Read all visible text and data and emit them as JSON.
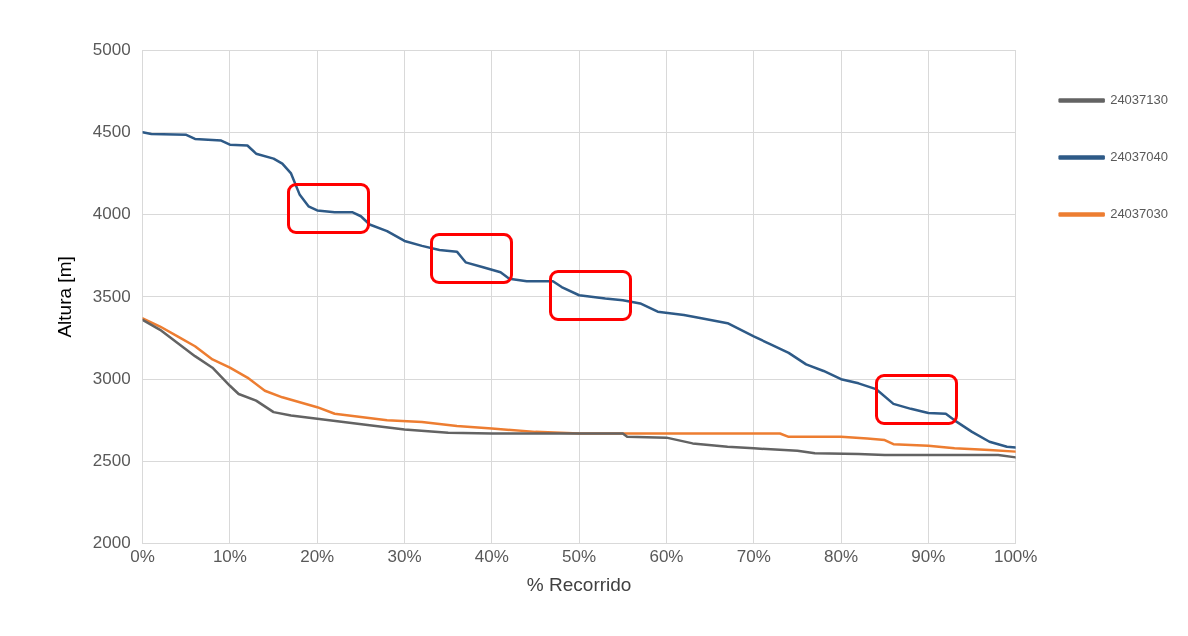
{
  "chart_data": {
    "type": "line",
    "xlabel": "% Recorrido",
    "ylabel": "Altura [m]",
    "xlim": [
      0,
      100
    ],
    "xticks": [
      {
        "value": 0,
        "label": "0%"
      },
      {
        "value": 10,
        "label": "10%"
      },
      {
        "value": 20,
        "label": "20%"
      },
      {
        "value": 30,
        "label": "30%"
      },
      {
        "value": 40,
        "label": "40%"
      },
      {
        "value": 50,
        "label": "50%"
      },
      {
        "value": 60,
        "label": "60%"
      },
      {
        "value": 70,
        "label": "70%"
      },
      {
        "value": 80,
        "label": "80%"
      },
      {
        "value": 90,
        "label": "90%"
      },
      {
        "value": 100,
        "label": "100%"
      }
    ],
    "ylim": [
      2000,
      5000
    ],
    "yticks": [
      2000,
      2500,
      3000,
      3500,
      4000,
      4500,
      5000
    ],
    "grid": true,
    "legend": "right",
    "marker": "none",
    "line_style": "solid",
    "series": [
      {
        "name": "24037130",
        "color": "#636363",
        "x": [
          0,
          2,
          4,
          6,
          8,
          10,
          11,
          13,
          15,
          17,
          20,
          23,
          26,
          30,
          35,
          40,
          50,
          55,
          55.5,
          60,
          63,
          67,
          70,
          75,
          77,
          82,
          85,
          98,
          100
        ],
        "values": [
          3360,
          3300,
          3220,
          3140,
          3070,
          2960,
          2910,
          2870,
          2800,
          2780,
          2760,
          2740,
          2720,
          2695,
          2675,
          2670,
          2670,
          2670,
          2650,
          2645,
          2610,
          2590,
          2580,
          2565,
          2550,
          2545,
          2540,
          2540,
          2525
        ]
      },
      {
        "name": "24037040",
        "color": "#2e5a87",
        "x": [
          0,
          1,
          5,
          6,
          9,
          10,
          12,
          13,
          15,
          16,
          17,
          18,
          19,
          20,
          22,
          24,
          25,
          26,
          28,
          30,
          32,
          34,
          36,
          37,
          39,
          41,
          42,
          44,
          47,
          48,
          50,
          53,
          55,
          57,
          59,
          62,
          64,
          67,
          70,
          72,
          74,
          76,
          78,
          80,
          82,
          84,
          86,
          88,
          90,
          92,
          93,
          95,
          97,
          99,
          100
        ],
        "values": [
          4500,
          4490,
          4485,
          4460,
          4450,
          4425,
          4420,
          4370,
          4340,
          4310,
          4250,
          4120,
          4050,
          4025,
          4015,
          4015,
          3990,
          3940,
          3900,
          3840,
          3810,
          3785,
          3775,
          3710,
          3680,
          3650,
          3610,
          3595,
          3595,
          3560,
          3510,
          3490,
          3480,
          3460,
          3410,
          3390,
          3370,
          3340,
          3260,
          3210,
          3160,
          3090,
          3050,
          3000,
          2975,
          2940,
          2850,
          2820,
          2795,
          2790,
          2750,
          2680,
          2620,
          2590,
          2585
        ]
      },
      {
        "name": "24037030",
        "color": "#ed7d31",
        "x": [
          0,
          2,
          4,
          6,
          8,
          10,
          12,
          14,
          16,
          18,
          20,
          22,
          25,
          28,
          32,
          36,
          40,
          45,
          50,
          55,
          73,
          74,
          80,
          83,
          85,
          86,
          90,
          93,
          97,
          100
        ],
        "values": [
          3370,
          3320,
          3260,
          3200,
          3120,
          3070,
          3010,
          2930,
          2890,
          2860,
          2830,
          2790,
          2770,
          2750,
          2740,
          2715,
          2700,
          2680,
          2670,
          2670,
          2670,
          2650,
          2650,
          2640,
          2630,
          2605,
          2595,
          2580,
          2570,
          2560
        ]
      }
    ]
  }
}
